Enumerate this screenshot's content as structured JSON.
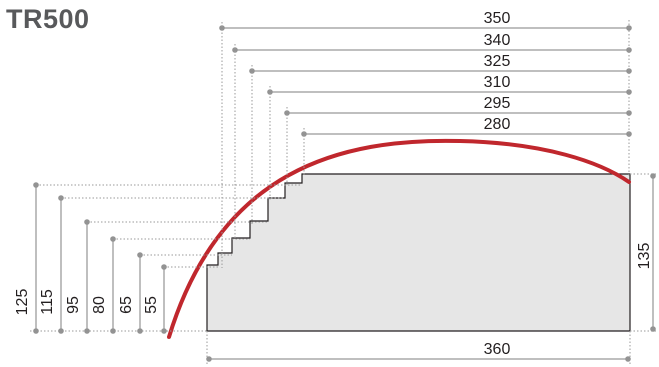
{
  "title": "TR500",
  "top_widths": [
    "350",
    "340",
    "325",
    "310",
    "295",
    "280"
  ],
  "left_heights": [
    "125",
    "115",
    "95",
    "80",
    "65",
    "55"
  ],
  "right_height": "135",
  "bottom_width": "360",
  "colors": {
    "arc": "#c0272d",
    "fill": "#e6e6e6",
    "line": "#231f20",
    "dim_line": "#7f7f7f",
    "dot": "#939393",
    "title": "#58595b"
  }
}
